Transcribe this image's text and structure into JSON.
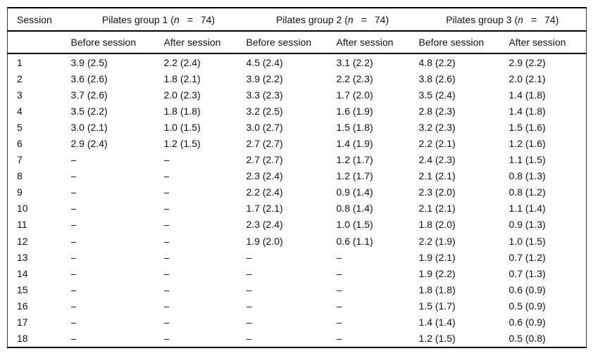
{
  "table": {
    "session_header": "Session",
    "groups": [
      {
        "prefix": "Pilates group 1 (",
        "n_symbol": "n",
        "equals": "=",
        "n_value": "74)"
      },
      {
        "prefix": "Pilates group 2 (",
        "n_symbol": "n",
        "equals": "=",
        "n_value": "74)"
      },
      {
        "prefix": "Pilates group 3 (",
        "n_symbol": "n",
        "equals": "=",
        "n_value": "74)"
      }
    ],
    "subheaders": [
      "Before session",
      "After session",
      "Before session",
      "After session",
      "Before session",
      "After session"
    ],
    "rows": [
      {
        "session": "1",
        "cells": [
          "3.9 (2.5)",
          "2.2 (2.4)",
          "4.5 (2.4)",
          "3.1 (2.2)",
          "4.8 (2.2)",
          "2.9 (2.2)"
        ]
      },
      {
        "session": "2",
        "cells": [
          "3.6 (2.6)",
          "1.8 (2.1)",
          "3.9 (2.2)",
          "2.2 (2.3)",
          "3.8 (2.6)",
          "2.0 (2.1)"
        ]
      },
      {
        "session": "3",
        "cells": [
          "3.7 (2.6)",
          "2.0 (2.3)",
          "3.3 (2.3)",
          "1.7 (2.0)",
          "3.5 (2.4)",
          "1.4 (1.8)"
        ]
      },
      {
        "session": "4",
        "cells": [
          "3.5 (2.2)",
          "1.8 (1.8)",
          "3.2 (2.5)",
          "1.6 (1.9)",
          "2.8 (2.3)",
          "1.4 (1.8)"
        ]
      },
      {
        "session": "5",
        "cells": [
          "3.0 (2.1)",
          "1.0 (1.5)",
          "3.0 (2.7)",
          "1.5 (1.8)",
          "3.2 (2.3)",
          "1.5 (1.6)"
        ]
      },
      {
        "session": "6",
        "cells": [
          "2.9 (2.4)",
          "1.2 (1.5)",
          "2.7 (2.7)",
          "1.4 (1.9)",
          "2.2 (2.1)",
          "1.2 (1.6)"
        ]
      },
      {
        "session": "7",
        "cells": [
          "–",
          "–",
          "2.7 (2.7)",
          "1.2 (1.7)",
          "2.4 (2.3)",
          "1.1 (1.5)"
        ]
      },
      {
        "session": "8",
        "cells": [
          "–",
          "–",
          "2.3 (2.4)",
          "1.2 (1.7)",
          "2.1 (2.1)",
          "0.8 (1.3)"
        ]
      },
      {
        "session": "9",
        "cells": [
          "–",
          "–",
          "2.2 (2.4)",
          "0.9 (1.4)",
          "2.3 (2.0)",
          "0.8 (1.2)"
        ]
      },
      {
        "session": "10",
        "cells": [
          "–",
          "–",
          "1.7 (2.1)",
          "0.8 (1.4)",
          "2.1 (2.1)",
          "1.1 (1.4)"
        ]
      },
      {
        "session": "11",
        "cells": [
          "–",
          "–",
          "2.3 (2.4)",
          "1.0 (1.5)",
          "1.8 (2.0)",
          "0.9 (1.3)"
        ]
      },
      {
        "session": "12",
        "cells": [
          "–",
          "–",
          "1.9 (2.0)",
          "0.6 (1.1)",
          "2.2 (1.9)",
          "1.0 (1.5)"
        ]
      },
      {
        "session": "13",
        "cells": [
          "–",
          "–",
          "–",
          "–",
          "1.9 (2.1)",
          "0.7 (1.2)"
        ]
      },
      {
        "session": "14",
        "cells": [
          "–",
          "–",
          "–",
          "–",
          "1.9 (2.2)",
          "0.7 (1.3)"
        ]
      },
      {
        "session": "15",
        "cells": [
          "–",
          "–",
          "–",
          "–",
          "1.8 (1.8)",
          "0.6 (0.9)"
        ]
      },
      {
        "session": "16",
        "cells": [
          "–",
          "–",
          "–",
          "–",
          "1.5 (1.7)",
          "0.5 (0.9)"
        ]
      },
      {
        "session": "17",
        "cells": [
          "–",
          "–",
          "–",
          "–",
          "1.4 (1.4)",
          "0.6 (0.9)"
        ]
      },
      {
        "session": "18",
        "cells": [
          "–",
          "–",
          "–",
          "–",
          "1.2 (1.5)",
          "0.5 (0.8)"
        ]
      }
    ]
  }
}
